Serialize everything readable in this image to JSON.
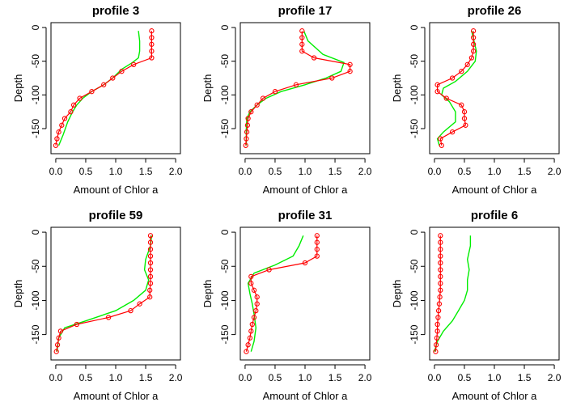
{
  "colors": {
    "observed": "#ff0000",
    "fitted": "#00ee00",
    "axis": "#000000"
  },
  "chart_data": [
    {
      "type": "line",
      "title": "profile  3",
      "xlabel": "Amount of Chlor a",
      "ylabel": "Depth",
      "xlim": [
        0,
        2
      ],
      "ylim": [
        -180,
        0
      ],
      "grid": false,
      "xticks": [
        "0.0",
        "0.5",
        "1.0",
        "1.5",
        "2.0"
      ],
      "yticks": [
        "0",
        "-50",
        "-100",
        "-150"
      ],
      "series": [
        {
          "values": [
            [
              1.6,
              -5
            ],
            [
              1.6,
              -15
            ],
            [
              1.6,
              -25
            ],
            [
              1.6,
              -35
            ],
            [
              1.6,
              -45
            ],
            [
              1.3,
              -55
            ],
            [
              1.1,
              -65
            ],
            [
              0.95,
              -75
            ],
            [
              0.8,
              -85
            ],
            [
              0.6,
              -95
            ],
            [
              0.4,
              -105
            ],
            [
              0.3,
              -115
            ],
            [
              0.25,
              -125
            ],
            [
              0.15,
              -135
            ],
            [
              0.1,
              -145
            ],
            [
              0.05,
              -155
            ],
            [
              0.02,
              -165
            ],
            [
              0.0,
              -175
            ]
          ]
        },
        {
          "values": [
            [
              1.38,
              -5
            ],
            [
              1.4,
              -20
            ],
            [
              1.4,
              -35
            ],
            [
              1.38,
              -45
            ],
            [
              1.28,
              -52
            ],
            [
              1.1,
              -62
            ],
            [
              0.95,
              -75
            ],
            [
              0.8,
              -85
            ],
            [
              0.6,
              -95
            ],
            [
              0.45,
              -105
            ],
            [
              0.35,
              -115
            ],
            [
              0.28,
              -125
            ],
            [
              0.2,
              -140
            ],
            [
              0.12,
              -160
            ],
            [
              0.05,
              -175
            ]
          ]
        }
      ]
    },
    {
      "type": "line",
      "title": "profile  17",
      "xlabel": "Amount of Chlor a",
      "ylabel": "Depth",
      "xlim": [
        0,
        2
      ],
      "ylim": [
        -180,
        0
      ],
      "grid": false,
      "xticks": [
        "0.0",
        "0.5",
        "1.0",
        "1.5",
        "2.0"
      ],
      "yticks": [
        "0",
        "-50",
        "-100",
        "-150"
      ],
      "series": [
        {
          "values": [
            [
              0.95,
              -5
            ],
            [
              0.95,
              -15
            ],
            [
              0.95,
              -25
            ],
            [
              0.95,
              -35
            ],
            [
              1.15,
              -45
            ],
            [
              1.75,
              -55
            ],
            [
              1.75,
              -65
            ],
            [
              1.45,
              -75
            ],
            [
              0.85,
              -85
            ],
            [
              0.5,
              -95
            ],
            [
              0.3,
              -105
            ],
            [
              0.2,
              -115
            ],
            [
              0.1,
              -125
            ],
            [
              0.05,
              -135
            ],
            [
              0.04,
              -145
            ],
            [
              0.03,
              -155
            ],
            [
              0.02,
              -165
            ],
            [
              0.01,
              -175
            ]
          ]
        },
        {
          "values": [
            [
              0.98,
              -5
            ],
            [
              1.05,
              -20
            ],
            [
              1.3,
              -40
            ],
            [
              1.65,
              -52
            ],
            [
              1.6,
              -65
            ],
            [
              1.35,
              -75
            ],
            [
              1.0,
              -85
            ],
            [
              0.6,
              -95
            ],
            [
              0.35,
              -105
            ],
            [
              0.2,
              -115
            ],
            [
              0.08,
              -125
            ],
            [
              0.03,
              -135
            ],
            [
              0.02,
              -150
            ],
            [
              0.02,
              -175
            ]
          ]
        }
      ]
    },
    {
      "type": "line",
      "title": "profile  26",
      "xlabel": "Amount of Chlor a",
      "ylabel": "Depth",
      "xlim": [
        0,
        2
      ],
      "ylim": [
        -180,
        0
      ],
      "grid": false,
      "xticks": [
        "0.0",
        "0.5",
        "1.0",
        "1.5",
        "2.0"
      ],
      "yticks": [
        "0",
        "-50",
        "-100",
        "-150"
      ],
      "series": [
        {
          "values": [
            [
              0.65,
              -5
            ],
            [
              0.65,
              -15
            ],
            [
              0.65,
              -25
            ],
            [
              0.65,
              -35
            ],
            [
              0.62,
              -45
            ],
            [
              0.55,
              -55
            ],
            [
              0.45,
              -65
            ],
            [
              0.3,
              -75
            ],
            [
              0.05,
              -85
            ],
            [
              0.05,
              -95
            ],
            [
              0.2,
              -105
            ],
            [
              0.45,
              -115
            ],
            [
              0.5,
              -125
            ],
            [
              0.5,
              -135
            ],
            [
              0.52,
              -145
            ],
            [
              0.3,
              -155
            ],
            [
              0.1,
              -165
            ],
            [
              0.12,
              -175
            ]
          ]
        },
        {
          "values": [
            [
              0.62,
              -5
            ],
            [
              0.66,
              -20
            ],
            [
              0.7,
              -35
            ],
            [
              0.68,
              -50
            ],
            [
              0.55,
              -65
            ],
            [
              0.35,
              -80
            ],
            [
              0.15,
              -90
            ],
            [
              0.12,
              -100
            ],
            [
              0.25,
              -110
            ],
            [
              0.35,
              -125
            ],
            [
              0.35,
              -140
            ],
            [
              0.15,
              -155
            ],
            [
              0.05,
              -165
            ],
            [
              0.08,
              -175
            ]
          ]
        }
      ]
    },
    {
      "type": "line",
      "title": "profile  59",
      "xlabel": "Amount of Chlor a",
      "ylabel": "Depth",
      "xlim": [
        0,
        2
      ],
      "ylim": [
        -180,
        0
      ],
      "grid": false,
      "xticks": [
        "0.0",
        "0.5",
        "1.0",
        "1.5",
        "2.0"
      ],
      "yticks": [
        "0",
        "-50",
        "-100",
        "-150"
      ],
      "series": [
        {
          "values": [
            [
              1.58,
              -5
            ],
            [
              1.58,
              -15
            ],
            [
              1.58,
              -25
            ],
            [
              1.58,
              -35
            ],
            [
              1.58,
              -45
            ],
            [
              1.58,
              -55
            ],
            [
              1.58,
              -65
            ],
            [
              1.58,
              -75
            ],
            [
              1.57,
              -85
            ],
            [
              1.57,
              -95
            ],
            [
              1.4,
              -105
            ],
            [
              1.25,
              -115
            ],
            [
              0.88,
              -125
            ],
            [
              0.35,
              -135
            ],
            [
              0.08,
              -145
            ],
            [
              0.05,
              -155
            ],
            [
              0.03,
              -165
            ],
            [
              0.01,
              -175
            ]
          ]
        },
        {
          "values": [
            [
              1.6,
              -5
            ],
            [
              1.58,
              -20
            ],
            [
              1.5,
              -40
            ],
            [
              1.48,
              -55
            ],
            [
              1.55,
              -70
            ],
            [
              1.5,
              -85
            ],
            [
              1.3,
              -100
            ],
            [
              1.0,
              -115
            ],
            [
              0.5,
              -130
            ],
            [
              0.15,
              -140
            ],
            [
              0.05,
              -155
            ],
            [
              0.02,
              -175
            ]
          ]
        }
      ]
    },
    {
      "type": "line",
      "title": "profile  31",
      "xlabel": "Amount of Chlor a",
      "ylabel": "Depth",
      "xlim": [
        0,
        2
      ],
      "ylim": [
        -180,
        0
      ],
      "grid": false,
      "xticks": [
        "0.0",
        "0.5",
        "1.0",
        "1.5",
        "2.0"
      ],
      "yticks": [
        "0",
        "-50",
        "-100",
        "-150"
      ],
      "series": [
        {
          "values": [
            [
              1.2,
              -5
            ],
            [
              1.2,
              -15
            ],
            [
              1.2,
              -25
            ],
            [
              1.2,
              -35
            ],
            [
              1.0,
              -45
            ],
            [
              0.4,
              -55
            ],
            [
              0.1,
              -65
            ],
            [
              0.1,
              -75
            ],
            [
              0.15,
              -85
            ],
            [
              0.2,
              -95
            ],
            [
              0.2,
              -105
            ],
            [
              0.18,
              -115
            ],
            [
              0.15,
              -125
            ],
            [
              0.12,
              -135
            ],
            [
              0.1,
              -145
            ],
            [
              0.08,
              -155
            ],
            [
              0.05,
              -165
            ],
            [
              0.02,
              -175
            ]
          ]
        },
        {
          "values": [
            [
              0.97,
              -5
            ],
            [
              0.9,
              -20
            ],
            [
              0.8,
              -35
            ],
            [
              0.5,
              -48
            ],
            [
              0.15,
              -60
            ],
            [
              0.05,
              -75
            ],
            [
              0.08,
              -90
            ],
            [
              0.12,
              -105
            ],
            [
              0.15,
              -120
            ],
            [
              0.18,
              -140
            ],
            [
              0.15,
              -160
            ],
            [
              0.1,
              -175
            ]
          ]
        }
      ]
    },
    {
      "type": "line",
      "title": "profile  6",
      "xlabel": "Amount of Chlor a",
      "ylabel": "Depth",
      "xlim": [
        0,
        2
      ],
      "ylim": [
        -180,
        0
      ],
      "grid": false,
      "xticks": [
        "0.0",
        "0.5",
        "1.0",
        "1.5",
        "2.0"
      ],
      "yticks": [
        "0",
        "-50",
        "-100",
        "-150"
      ],
      "series": [
        {
          "values": [
            [
              0.1,
              -5
            ],
            [
              0.1,
              -15
            ],
            [
              0.1,
              -25
            ],
            [
              0.1,
              -35
            ],
            [
              0.1,
              -45
            ],
            [
              0.1,
              -55
            ],
            [
              0.1,
              -65
            ],
            [
              0.1,
              -75
            ],
            [
              0.1,
              -85
            ],
            [
              0.09,
              -95
            ],
            [
              0.08,
              -105
            ],
            [
              0.07,
              -115
            ],
            [
              0.06,
              -125
            ],
            [
              0.05,
              -135
            ],
            [
              0.05,
              -145
            ],
            [
              0.04,
              -155
            ],
            [
              0.03,
              -165
            ],
            [
              0.02,
              -175
            ]
          ]
        },
        {
          "values": [
            [
              0.6,
              -5
            ],
            [
              0.6,
              -20
            ],
            [
              0.55,
              -40
            ],
            [
              0.58,
              -55
            ],
            [
              0.55,
              -70
            ],
            [
              0.55,
              -85
            ],
            [
              0.5,
              -100
            ],
            [
              0.4,
              -115
            ],
            [
              0.3,
              -130
            ],
            [
              0.15,
              -145
            ],
            [
              0.05,
              -160
            ],
            [
              0.0,
              -175
            ]
          ]
        }
      ]
    }
  ]
}
